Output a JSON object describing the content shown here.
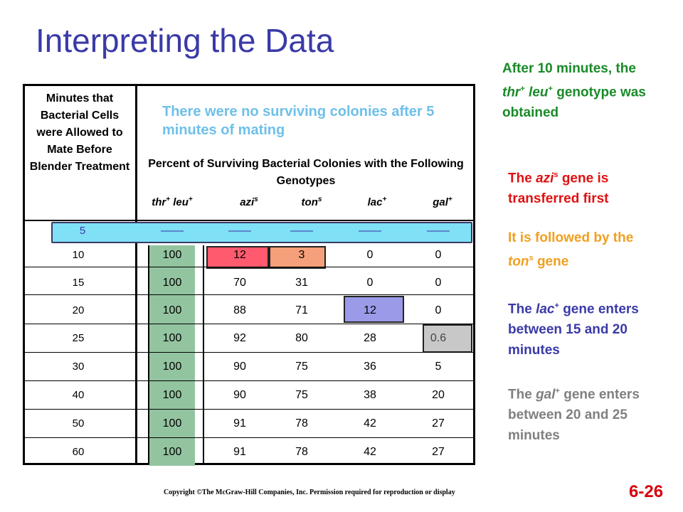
{
  "title": "Interpreting the Data",
  "table": {
    "header_minutes": "Minutes that Bacterial Cells were Allowed to Mate Before Blender Treatment",
    "annotation": "There were no surviving colonies after 5 minutes of mating",
    "header_percent": "Percent of Surviving Bacterial Colonies with the Following Genotypes",
    "genotypes": [
      {
        "name": "thr",
        "sup": "+",
        "name2": "leu",
        "sup2": "+"
      },
      {
        "name": "azi",
        "sup": "s"
      },
      {
        "name": "ton",
        "sup": "s"
      },
      {
        "name": "lac",
        "sup": "+"
      },
      {
        "name": "gal",
        "sup": "+"
      }
    ],
    "rows": [
      {
        "minute": "5",
        "values": [
          "——",
          "——",
          "——",
          "——",
          "——"
        ]
      },
      {
        "minute": "10",
        "values": [
          "100",
          "12",
          "3",
          "0",
          "0"
        ]
      },
      {
        "minute": "15",
        "values": [
          "100",
          "70",
          "31",
          "0",
          "0"
        ]
      },
      {
        "minute": "20",
        "values": [
          "100",
          "88",
          "71",
          "12",
          "0"
        ]
      },
      {
        "minute": "25",
        "values": [
          "100",
          "92",
          "80",
          "28",
          "0.6"
        ]
      },
      {
        "minute": "30",
        "values": [
          "100",
          "90",
          "75",
          "36",
          "5"
        ]
      },
      {
        "minute": "40",
        "values": [
          "100",
          "90",
          "75",
          "38",
          "20"
        ]
      },
      {
        "minute": "50",
        "values": [
          "100",
          "91",
          "78",
          "42",
          "27"
        ]
      },
      {
        "minute": "60",
        "values": [
          "100",
          "91",
          "78",
          "42",
          "27"
        ]
      }
    ]
  },
  "notes": {
    "n1": {
      "a": "After 10 minutes, the ",
      "g1": "thr",
      "s1": "+",
      "g2": "leu",
      "s2": "+",
      "b": " genotype was obtained",
      "color": "#1a8a2a"
    },
    "n2": {
      "a": "The ",
      "g": "azi",
      "s": "s",
      "b": " gene is transferred first",
      "color": "#e01010"
    },
    "n3": {
      "a": "It is followed by the ",
      "g": "ton",
      "s": "s",
      "b": " gene",
      "color": "#f0a020"
    },
    "n4": {
      "a": "The ",
      "g": "lac",
      "s": "+",
      "b": " gene enters between 15 and 20 minutes",
      "color": "#3a3aa8"
    },
    "n5": {
      "a": "The ",
      "g": "gal",
      "s": "+",
      "b": " gene enters between 20 and 25 minutes",
      "color": "#808080"
    }
  },
  "highlight_colors": {
    "row5": "#7fe0f6",
    "thr_leu_column": "#93c4a0",
    "azi_10": "#ff5a6e",
    "ton_10": "#f5a07a",
    "lac_20": "#9a9ae8",
    "gal_25": "#c8c8c8"
  },
  "footer": {
    "copyright": "Copyright ©The McGraw-Hill Companies, Inc. Permission required for reproduction or display",
    "slide_number": "6-26"
  }
}
